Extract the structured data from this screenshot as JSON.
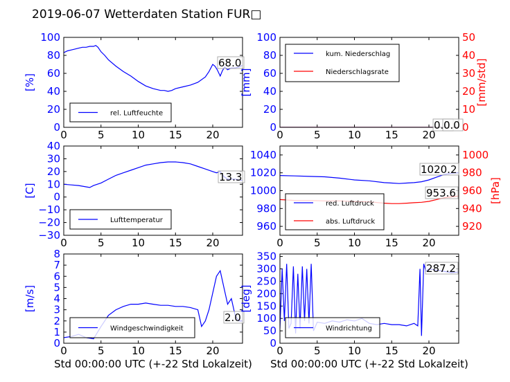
{
  "title": "2019-06-07 Wetterdaten Station FUR□",
  "colors": {
    "primary": "#0000ff",
    "secondary": "#ff0000",
    "faded": "#8080ff",
    "axis": "#000000"
  },
  "chart_data": [
    {
      "id": "humidity",
      "type": "line",
      "ylabel": "[%]",
      "xlabel": "",
      "xlim": [
        0,
        24
      ],
      "ylim": [
        0,
        100
      ],
      "xticks": [
        "0",
        "5",
        "10",
        "15",
        "20"
      ],
      "yticks": [
        "0",
        "20",
        "40",
        "60",
        "80",
        "100"
      ],
      "legend": [
        "rel. Luftfeuchte"
      ],
      "annotation": "68.0",
      "series": [
        {
          "name": "rel. Luftfeuchte",
          "x": [
            0,
            0.5,
            1,
            1.5,
            2,
            2.5,
            3,
            3.5,
            4,
            4.3,
            4.6,
            5,
            5.5,
            6,
            7,
            8,
            9,
            10,
            11,
            12,
            13,
            13.5,
            14,
            14.5,
            15,
            16,
            17,
            18,
            19,
            19.5,
            20,
            20.3,
            20.6,
            21,
            21.3,
            21.6,
            22,
            22.5,
            23,
            23.5,
            24
          ],
          "y": [
            83,
            85,
            86,
            87,
            88,
            89,
            89,
            90,
            90,
            91,
            89,
            84,
            80,
            75,
            68,
            62,
            57,
            51,
            46,
            43,
            41,
            41,
            40,
            41,
            43,
            45,
            47,
            50,
            56,
            62,
            70,
            68,
            64,
            57,
            63,
            67,
            64,
            66,
            66,
            67,
            69
          ]
        }
      ]
    },
    {
      "id": "precip",
      "type": "line",
      "ylabel": "[mm]",
      "y2label": "[mm/std]",
      "xlabel": "",
      "xlim": [
        0,
        24
      ],
      "ylim": [
        0,
        100
      ],
      "y2lim": [
        0,
        50
      ],
      "xticks": [
        "0",
        "5",
        "10",
        "15",
        "20"
      ],
      "yticks": [
        "0",
        "20",
        "40",
        "60",
        "80",
        "100"
      ],
      "y2ticks": [
        "0",
        "10",
        "20",
        "30",
        "40",
        "50"
      ],
      "legend": [
        "kum. Niederschlag",
        "Niederschlagsrate"
      ],
      "annotations": [
        "0.0",
        "0.0"
      ],
      "series": [
        {
          "name": "kum. Niederschlag",
          "x": [
            0,
            24
          ],
          "y": [
            0,
            0
          ]
        },
        {
          "name": "Niederschlagsrate",
          "axis": "right",
          "x": [
            0,
            24
          ],
          "y": [
            0,
            0
          ]
        }
      ]
    },
    {
      "id": "temperature",
      "type": "line",
      "ylabel": "[C]",
      "xlabel": "",
      "xlim": [
        0,
        24
      ],
      "ylim": [
        -30,
        40
      ],
      "xticks": [
        "0",
        "5",
        "10",
        "15",
        "20"
      ],
      "yticks": [
        "−30",
        "−20",
        "−10",
        "0",
        "10",
        "20",
        "30",
        "40"
      ],
      "legend": [
        "Lufttemperatur"
      ],
      "annotation": "13.3",
      "series": [
        {
          "name": "Lufttemperatur",
          "x": [
            0,
            1,
            2,
            3,
            3.5,
            4,
            5,
            6,
            7,
            8,
            9,
            10,
            11,
            12,
            13,
            14,
            15,
            16,
            17,
            18,
            19,
            20,
            20.5,
            21,
            21.5,
            22,
            23,
            24
          ],
          "y": [
            10,
            9.5,
            9,
            8,
            7.5,
            9,
            11,
            14,
            17,
            19,
            21,
            23,
            25,
            26,
            27,
            27.5,
            27.5,
            27,
            26,
            24,
            22,
            20,
            19,
            20,
            16,
            14,
            14,
            13
          ]
        }
      ]
    },
    {
      "id": "pressure",
      "type": "line",
      "ylabel": "",
      "y2label": "[hPa]",
      "xlabel": "",
      "xlim": [
        0,
        24
      ],
      "ylim": [
        950,
        1050
      ],
      "y2lim": [
        910,
        1010
      ],
      "xticks": [
        "0",
        "5",
        "10",
        "15",
        "20"
      ],
      "yticks": [
        "960",
        "980",
        "1000",
        "1020",
        "1040"
      ],
      "y2ticks": [
        "920",
        "940",
        "960",
        "980",
        "1000"
      ],
      "legend": [
        "red. Luftdruck",
        "abs. Luftdruck"
      ],
      "annotations": [
        "1020.2",
        "953.6"
      ],
      "series": [
        {
          "name": "red. Luftdruck",
          "x": [
            0,
            2,
            4,
            6,
            8,
            10,
            12,
            14,
            15,
            16,
            17,
            18,
            19,
            20,
            21,
            22,
            23,
            24
          ],
          "y": [
            1017,
            1016.5,
            1016,
            1015.5,
            1014,
            1012,
            1011,
            1009,
            1008.5,
            1008,
            1008.5,
            1009,
            1010,
            1012,
            1015,
            1018,
            1019.5,
            1020
          ]
        },
        {
          "name": "abs. Luftdruck",
          "axis": "right",
          "x": [
            0,
            2,
            4,
            6,
            8,
            10,
            12,
            14,
            15,
            16,
            17,
            18,
            19,
            20,
            21,
            22,
            23,
            24
          ],
          "y": [
            950,
            949,
            949,
            948.5,
            948.5,
            948,
            947.5,
            946,
            945.5,
            945.5,
            946,
            946.5,
            947,
            948,
            950,
            952,
            953,
            954
          ]
        }
      ]
    },
    {
      "id": "wind_speed",
      "type": "line",
      "ylabel": "[m/s]",
      "xlabel": "Std 00:00:00 UTC (+-22 Std Lokalzeit)",
      "xlim": [
        0,
        24
      ],
      "ylim": [
        0,
        8
      ],
      "xticks": [
        "0",
        "5",
        "10",
        "15",
        "20"
      ],
      "yticks": [
        "0",
        "1",
        "2",
        "3",
        "4",
        "5",
        "6",
        "7",
        "8"
      ],
      "legend": [
        "Windgeschwindigkeit"
      ],
      "annotation": "2.0",
      "series": [
        {
          "name": "Windgeschwindigkeit",
          "x": [
            0,
            1,
            2,
            3,
            4,
            5,
            6,
            7,
            8,
            9,
            10,
            11,
            12,
            13,
            14,
            15,
            16,
            17,
            18,
            18.5,
            19,
            19.5,
            20,
            20.5,
            21,
            21.5,
            22,
            22.5,
            23,
            23.5,
            24
          ],
          "y": [
            0.5,
            0.6,
            0.8,
            0.5,
            0.4,
            1.5,
            2.5,
            3,
            3.3,
            3.5,
            3.5,
            3.6,
            3.5,
            3.4,
            3.4,
            3.3,
            3.3,
            3.2,
            3,
            1.5,
            2,
            3,
            4.5,
            6,
            6.5,
            5,
            3.5,
            4,
            2.5,
            2,
            2
          ]
        }
      ]
    },
    {
      "id": "wind_dir",
      "type": "line",
      "ylabel": "[deg]",
      "xlabel": "Std 00:00:00 UTC (+-22 Std Lokalzeit)",
      "xlim": [
        0,
        24
      ],
      "ylim": [
        0,
        360
      ],
      "xticks": [
        "0",
        "5",
        "10",
        "15",
        "20"
      ],
      "yticks": [
        "0",
        "50",
        "100",
        "150",
        "200",
        "250",
        "300",
        "350"
      ],
      "legend": [
        "Windrichtung"
      ],
      "annotation": "287.2",
      "series": [
        {
          "name": "Windrichtung",
          "x": [
            0,
            0.3,
            0.6,
            0.9,
            1.2,
            1.5,
            1.8,
            2.1,
            2.4,
            2.7,
            3,
            3.3,
            3.6,
            3.9,
            4.2,
            4.5,
            5,
            6,
            7,
            8,
            9,
            10,
            11,
            12,
            13,
            14,
            15,
            16,
            17,
            18,
            18.5,
            18.8,
            19,
            19.3,
            19.6,
            20,
            21,
            22,
            23,
            24
          ],
          "y": [
            60,
            300,
            90,
            320,
            60,
            80,
            310,
            40,
            280,
            60,
            310,
            90,
            300,
            80,
            320,
            50,
            85,
            80,
            90,
            85,
            95,
            90,
            100,
            80,
            75,
            80,
            75,
            75,
            70,
            80,
            70,
            300,
            30,
            320,
            290,
            300,
            295,
            290,
            285,
            287
          ]
        }
      ]
    }
  ]
}
